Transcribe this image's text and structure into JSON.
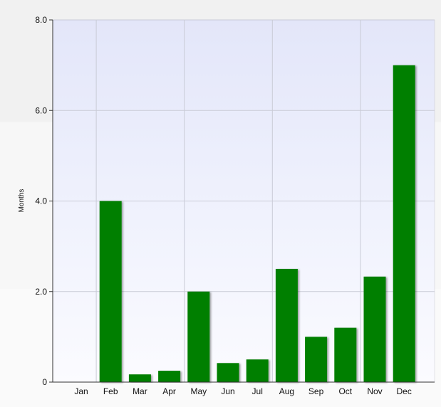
{
  "chart_data": {
    "type": "bar",
    "categories": [
      "Jan",
      "Feb",
      "Mar",
      "Apr",
      "May",
      "Jun",
      "Jul",
      "Aug",
      "Sep",
      "Oct",
      "Nov",
      "Dec"
    ],
    "values": [
      0,
      4.0,
      0.17,
      0.25,
      2.0,
      0.42,
      0.5,
      2.5,
      1.0,
      1.2,
      2.33,
      7.0
    ],
    "title": "",
    "xlabel": "",
    "ylabel": "Months",
    "ylim": [
      0,
      8
    ],
    "yticks": [
      "0",
      "2.0",
      "4.0",
      "6.0",
      "8.0"
    ],
    "bar_color": "#007f00",
    "grid": true,
    "legend": "none"
  }
}
